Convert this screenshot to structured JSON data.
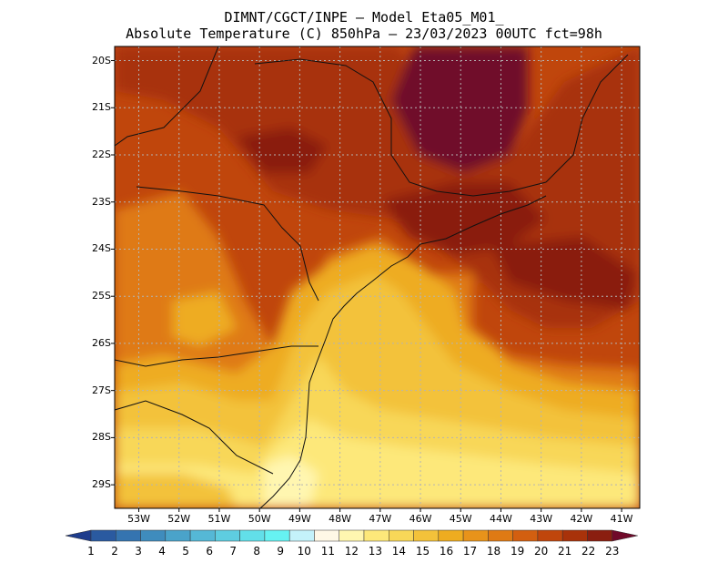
{
  "header": {
    "line1": "DIMNT/CGCT/INPE —  Model Eta05_M01_",
    "line2": "Absolute Temperature (C) 850hPa —  23/03/2023 00UTC fct=98h"
  },
  "map": {
    "lat_range": [
      -29.5,
      -19.7
    ],
    "lon_range": [
      -53.6,
      -40.55
    ],
    "y_ticks": [
      {
        "label": "20S",
        "lat": -20
      },
      {
        "label": "21S",
        "lat": -21
      },
      {
        "label": "22S",
        "lat": -22
      },
      {
        "label": "23S",
        "lat": -23
      },
      {
        "label": "24S",
        "lat": -24
      },
      {
        "label": "25S",
        "lat": -25
      },
      {
        "label": "26S",
        "lat": -26
      },
      {
        "label": "27S",
        "lat": -27
      },
      {
        "label": "28S",
        "lat": -28
      },
      {
        "label": "29S",
        "lat": -29
      }
    ],
    "x_ticks": [
      {
        "label": "53W",
        "lon": -53
      },
      {
        "label": "52W",
        "lon": -52
      },
      {
        "label": "51W",
        "lon": -51
      },
      {
        "label": "50W",
        "lon": -50
      },
      {
        "label": "49W",
        "lon": -49
      },
      {
        "label": "48W",
        "lon": -48
      },
      {
        "label": "47W",
        "lon": -47
      },
      {
        "label": "46W",
        "lon": -46
      },
      {
        "label": "45W",
        "lon": -45
      },
      {
        "label": "44W",
        "lon": -44
      },
      {
        "label": "43W",
        "lon": -43
      },
      {
        "label": "42W",
        "lon": -42
      },
      {
        "label": "41W",
        "lon": -41
      }
    ]
  },
  "colorbar": {
    "labels": [
      "1",
      "2",
      "3",
      "4",
      "5",
      "6",
      "7",
      "8",
      "9",
      "10",
      "11",
      "12",
      "13",
      "14",
      "15",
      "16",
      "17",
      "18",
      "19",
      "20",
      "21",
      "22",
      "23"
    ],
    "colors": [
      "#1e3c8c",
      "#2a5aa0",
      "#3574b0",
      "#3f8cbd",
      "#4aa3ca",
      "#55b8d6",
      "#5ecde0",
      "#62dfe9",
      "#66f2f2",
      "#c4f2fa",
      "#fff8e6",
      "#fff6b0",
      "#fde87a",
      "#f8d758",
      "#f3c23a",
      "#eeac20",
      "#e8931a",
      "#df7a14",
      "#d35f10",
      "#c0460c",
      "#a8320a",
      "#8a1e10",
      "#700a2a"
    ]
  }
}
